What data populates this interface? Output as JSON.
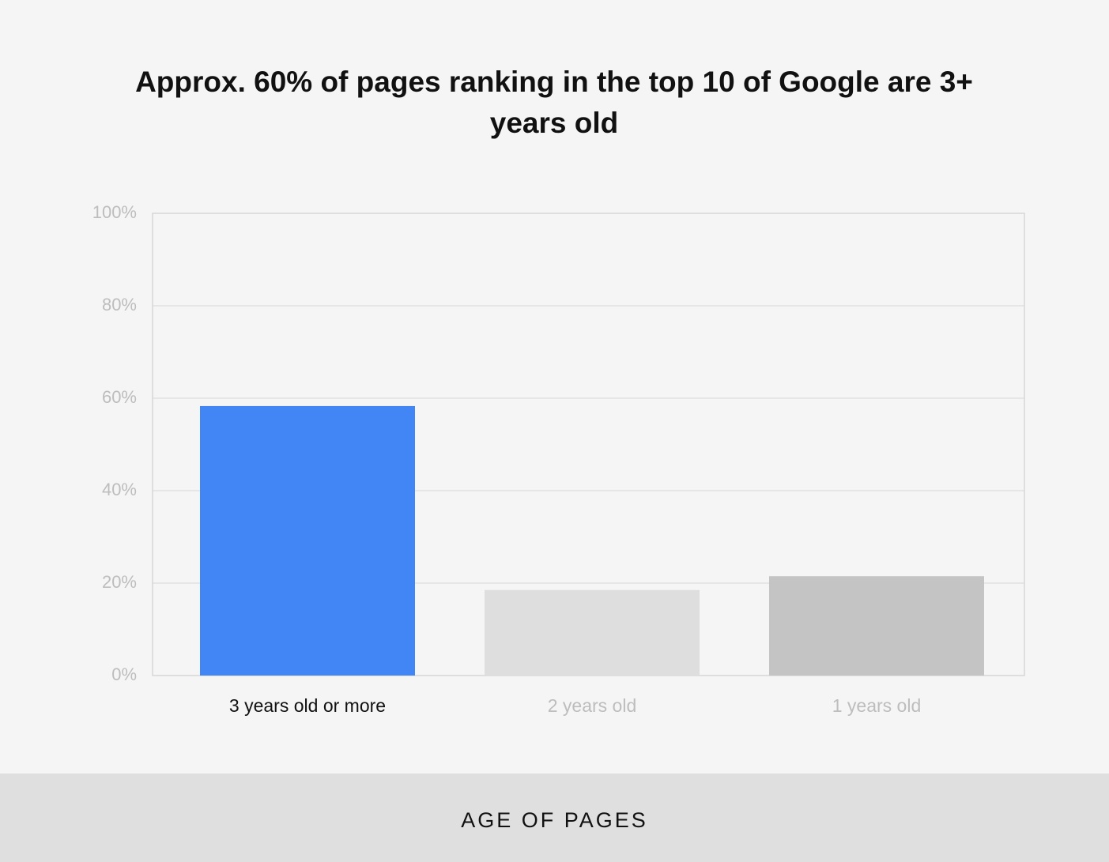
{
  "chart_data": {
    "type": "bar",
    "title": "Approx. 60% of pages ranking in the top 10 of Google are 3+ years old",
    "x_label": "AGE OF PAGES",
    "categories": [
      "3 years old or more",
      "2 years old",
      "1 years old"
    ],
    "values": [
      58.3,
      18.5,
      21.5
    ],
    "colors": [
      "#4285f4",
      "#dedede",
      "#c4c4c4"
    ],
    "ylim": [
      0,
      100
    ],
    "yticks": [
      {
        "value": 0,
        "label": "0%"
      },
      {
        "value": 20,
        "label": "20%"
      },
      {
        "value": 40,
        "label": "40%"
      },
      {
        "value": 60,
        "label": "60%"
      },
      {
        "value": 80,
        "label": "80%"
      },
      {
        "value": 100,
        "label": "100%"
      }
    ],
    "grid": true
  }
}
